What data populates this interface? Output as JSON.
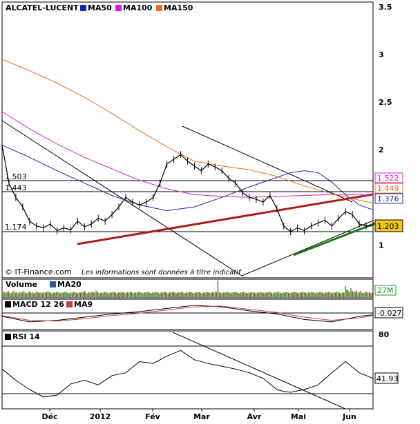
{
  "chart_data": [
    {
      "type": "line",
      "title": "ALCATEL-LUCENT",
      "ylim": [
        0.8,
        3.5
      ],
      "y_ticks": [
        "3.5",
        "3",
        "2.5",
        "2",
        "1.5",
        "1"
      ],
      "x_ticks": [
        "Déc",
        "2012",
        "Fév",
        "Mar",
        "Avr",
        "Mai",
        "Jun"
      ],
      "series": [
        {
          "name": "MA50",
          "color": "#1f1fb0",
          "x": [
            0,
            20,
            40,
            60,
            80,
            100,
            120,
            140,
            160,
            180,
            200,
            210,
            220,
            230,
            240,
            250,
            260,
            270
          ],
          "values": [
            2.05,
            1.92,
            1.78,
            1.65,
            1.52,
            1.42,
            1.36,
            1.4,
            1.5,
            1.61,
            1.71,
            1.76,
            1.78,
            1.76,
            1.66,
            1.53,
            1.42,
            1.37
          ]
        },
        {
          "name": "MA100",
          "color": "#d81bd8",
          "x": [
            0,
            20,
            40,
            60,
            80,
            100,
            120,
            140,
            160,
            180,
            200,
            220,
            240,
            260,
            270
          ],
          "values": [
            2.4,
            2.22,
            2.06,
            1.92,
            1.8,
            1.68,
            1.59,
            1.53,
            1.51,
            1.5,
            1.51,
            1.52,
            1.53,
            1.53,
            1.52
          ]
        },
        {
          "name": "MA150",
          "color": "#e07020",
          "x": [
            0,
            20,
            40,
            60,
            80,
            100,
            120,
            140,
            160,
            180,
            200,
            220,
            240,
            260,
            270
          ],
          "values": [
            2.95,
            2.83,
            2.7,
            2.55,
            2.38,
            2.2,
            2.03,
            1.88,
            1.83,
            1.79,
            1.72,
            1.62,
            1.54,
            1.47,
            1.44
          ]
        },
        {
          "name": "price",
          "color": "#000000",
          "x": [
            0,
            5,
            10,
            15,
            20,
            25,
            30,
            35,
            40,
            45,
            50,
            55,
            60,
            65,
            70,
            75,
            80,
            85,
            90,
            95,
            100,
            105,
            110,
            115,
            120,
            125,
            130,
            135,
            140,
            145,
            150,
            155,
            160,
            165,
            170,
            175,
            180,
            185,
            190,
            195,
            200,
            205,
            210,
            215,
            220,
            225,
            230,
            235,
            240,
            245,
            250,
            255,
            260,
            265,
            270
          ],
          "values": [
            2.05,
            1.65,
            1.5,
            1.4,
            1.25,
            1.2,
            1.18,
            1.22,
            1.15,
            1.18,
            1.16,
            1.25,
            1.19,
            1.22,
            1.28,
            1.25,
            1.32,
            1.4,
            1.5,
            1.45,
            1.42,
            1.45,
            1.5,
            1.65,
            1.85,
            1.9,
            1.95,
            1.88,
            1.83,
            1.78,
            1.85,
            1.82,
            1.78,
            1.7,
            1.65,
            1.55,
            1.5,
            1.48,
            1.45,
            1.52,
            1.38,
            1.2,
            1.14,
            1.18,
            1.15,
            1.2,
            1.23,
            1.26,
            1.2,
            1.28,
            1.35,
            1.32,
            1.22,
            1.2,
            1.2
          ]
        }
      ],
      "levels": [
        "1.503",
        "1.443",
        "1.174"
      ],
      "price_tags": [
        {
          "label": "1.522",
          "color": "#d81bd8"
        },
        {
          "label": "1.449",
          "color": "#e07020"
        },
        {
          "label": "1.376",
          "color": "#1f1fb0"
        },
        {
          "label": "1.203",
          "color": "#000000"
        }
      ],
      "credit": "© IT-Finance.com",
      "disclaimer": "Les informations sont données à titre indicatif"
    },
    {
      "type": "bar",
      "legend": [
        "Volume",
        "MA20"
      ],
      "last_value": "27M",
      "values": [
        8,
        10,
        7,
        9,
        11,
        8,
        7,
        9,
        12,
        8,
        9,
        7,
        10,
        8,
        9,
        11,
        8,
        7,
        9,
        10,
        8,
        9,
        7,
        8,
        10,
        9,
        8,
        9,
        7,
        10,
        8,
        9,
        11,
        9,
        8,
        7,
        9,
        8,
        10,
        9,
        8,
        7,
        9,
        8,
        10,
        9,
        8,
        7,
        9,
        8,
        10,
        9,
        8,
        7,
        9,
        8,
        10,
        9,
        11,
        8,
        7,
        9,
        8,
        10,
        9,
        8,
        12,
        9,
        8,
        7,
        9,
        8,
        10,
        9,
        8,
        7,
        9,
        8,
        10,
        9,
        8,
        7,
        9,
        8,
        10,
        9,
        8,
        7,
        9,
        8,
        10,
        9,
        8,
        7,
        9,
        8,
        10,
        9,
        8,
        7,
        9,
        8,
        10,
        9,
        8,
        7,
        9,
        8,
        10,
        9,
        8,
        7,
        9,
        8,
        10,
        9,
        8,
        7,
        9,
        8,
        10,
        9,
        8,
        7,
        9,
        8,
        10,
        9,
        8,
        7,
        9,
        8,
        10,
        9,
        8,
        7,
        9,
        8,
        10,
        9,
        8,
        7,
        9,
        8,
        10,
        9,
        8,
        7,
        9,
        8,
        10,
        9,
        30,
        9,
        8,
        7,
        9,
        8,
        10,
        9,
        8,
        7,
        9,
        8,
        10,
        9,
        8,
        7,
        9,
        8,
        10,
        9,
        8,
        7,
        9,
        8,
        10,
        9,
        8,
        7,
        9,
        8,
        10,
        9,
        8,
        7,
        9,
        8,
        10,
        9,
        8,
        7,
        9,
        8,
        10,
        9,
        8,
        7,
        9,
        8,
        10,
        9,
        8,
        7,
        9,
        8,
        10,
        9,
        8,
        7,
        9,
        8,
        10,
        9,
        8,
        7,
        9,
        8,
        10,
        9,
        8,
        7,
        9,
        8,
        10,
        9,
        8,
        7,
        9,
        8,
        10,
        9,
        8,
        7,
        9,
        8,
        10,
        9,
        8,
        7,
        9,
        8,
        20,
        14,
        12,
        9,
        16,
        11,
        10,
        9,
        12,
        8,
        9,
        11,
        8,
        7,
        9,
        10,
        8,
        9,
        7,
        8
      ]
    },
    {
      "type": "line",
      "legend": [
        "MACD 12 26",
        "MA9"
      ],
      "last_value": "-0.027",
      "series": [
        {
          "name": "MACD 12 26",
          "color": "#000000",
          "x": [
            0,
            20,
            40,
            60,
            80,
            100,
            120,
            140,
            160,
            180,
            200,
            220,
            240,
            260,
            270
          ],
          "values": [
            -0.05,
            -0.12,
            -0.1,
            -0.06,
            -0.02,
            0.01,
            0.05,
            0.09,
            0.07,
            0.02,
            -0.02,
            -0.09,
            -0.12,
            -0.05,
            -0.03
          ]
        },
        {
          "name": "MA9",
          "color": "#c84040",
          "x": [
            0,
            20,
            40,
            60,
            80,
            100,
            120,
            140,
            160,
            180,
            200,
            220,
            240,
            260,
            270
          ],
          "values": [
            -0.04,
            -0.1,
            -0.11,
            -0.08,
            -0.04,
            -0.01,
            0.03,
            0.07,
            0.08,
            0.04,
            0.0,
            -0.06,
            -0.1,
            -0.07,
            -0.04
          ]
        }
      ],
      "ylim": [
        -0.2,
        0.15
      ]
    },
    {
      "type": "line",
      "legend": [
        "RSI 14"
      ],
      "last_value": "41.93",
      "y_ticks": [
        "80"
      ],
      "series": [
        {
          "name": "RSI 14",
          "color": "#000000",
          "x": [
            0,
            10,
            20,
            30,
            40,
            50,
            60,
            70,
            80,
            90,
            100,
            110,
            120,
            130,
            140,
            150,
            160,
            170,
            180,
            190,
            200,
            205,
            210,
            220,
            230,
            240,
            250,
            260,
            270
          ],
          "values": [
            52,
            40,
            30,
            22,
            24,
            36,
            40,
            35,
            45,
            48,
            60,
            58,
            66,
            72,
            62,
            58,
            55,
            52,
            48,
            42,
            30,
            28,
            27,
            30,
            35,
            48,
            60,
            48,
            42
          ]
        }
      ],
      "ylim": [
        10,
        90
      ]
    }
  ]
}
